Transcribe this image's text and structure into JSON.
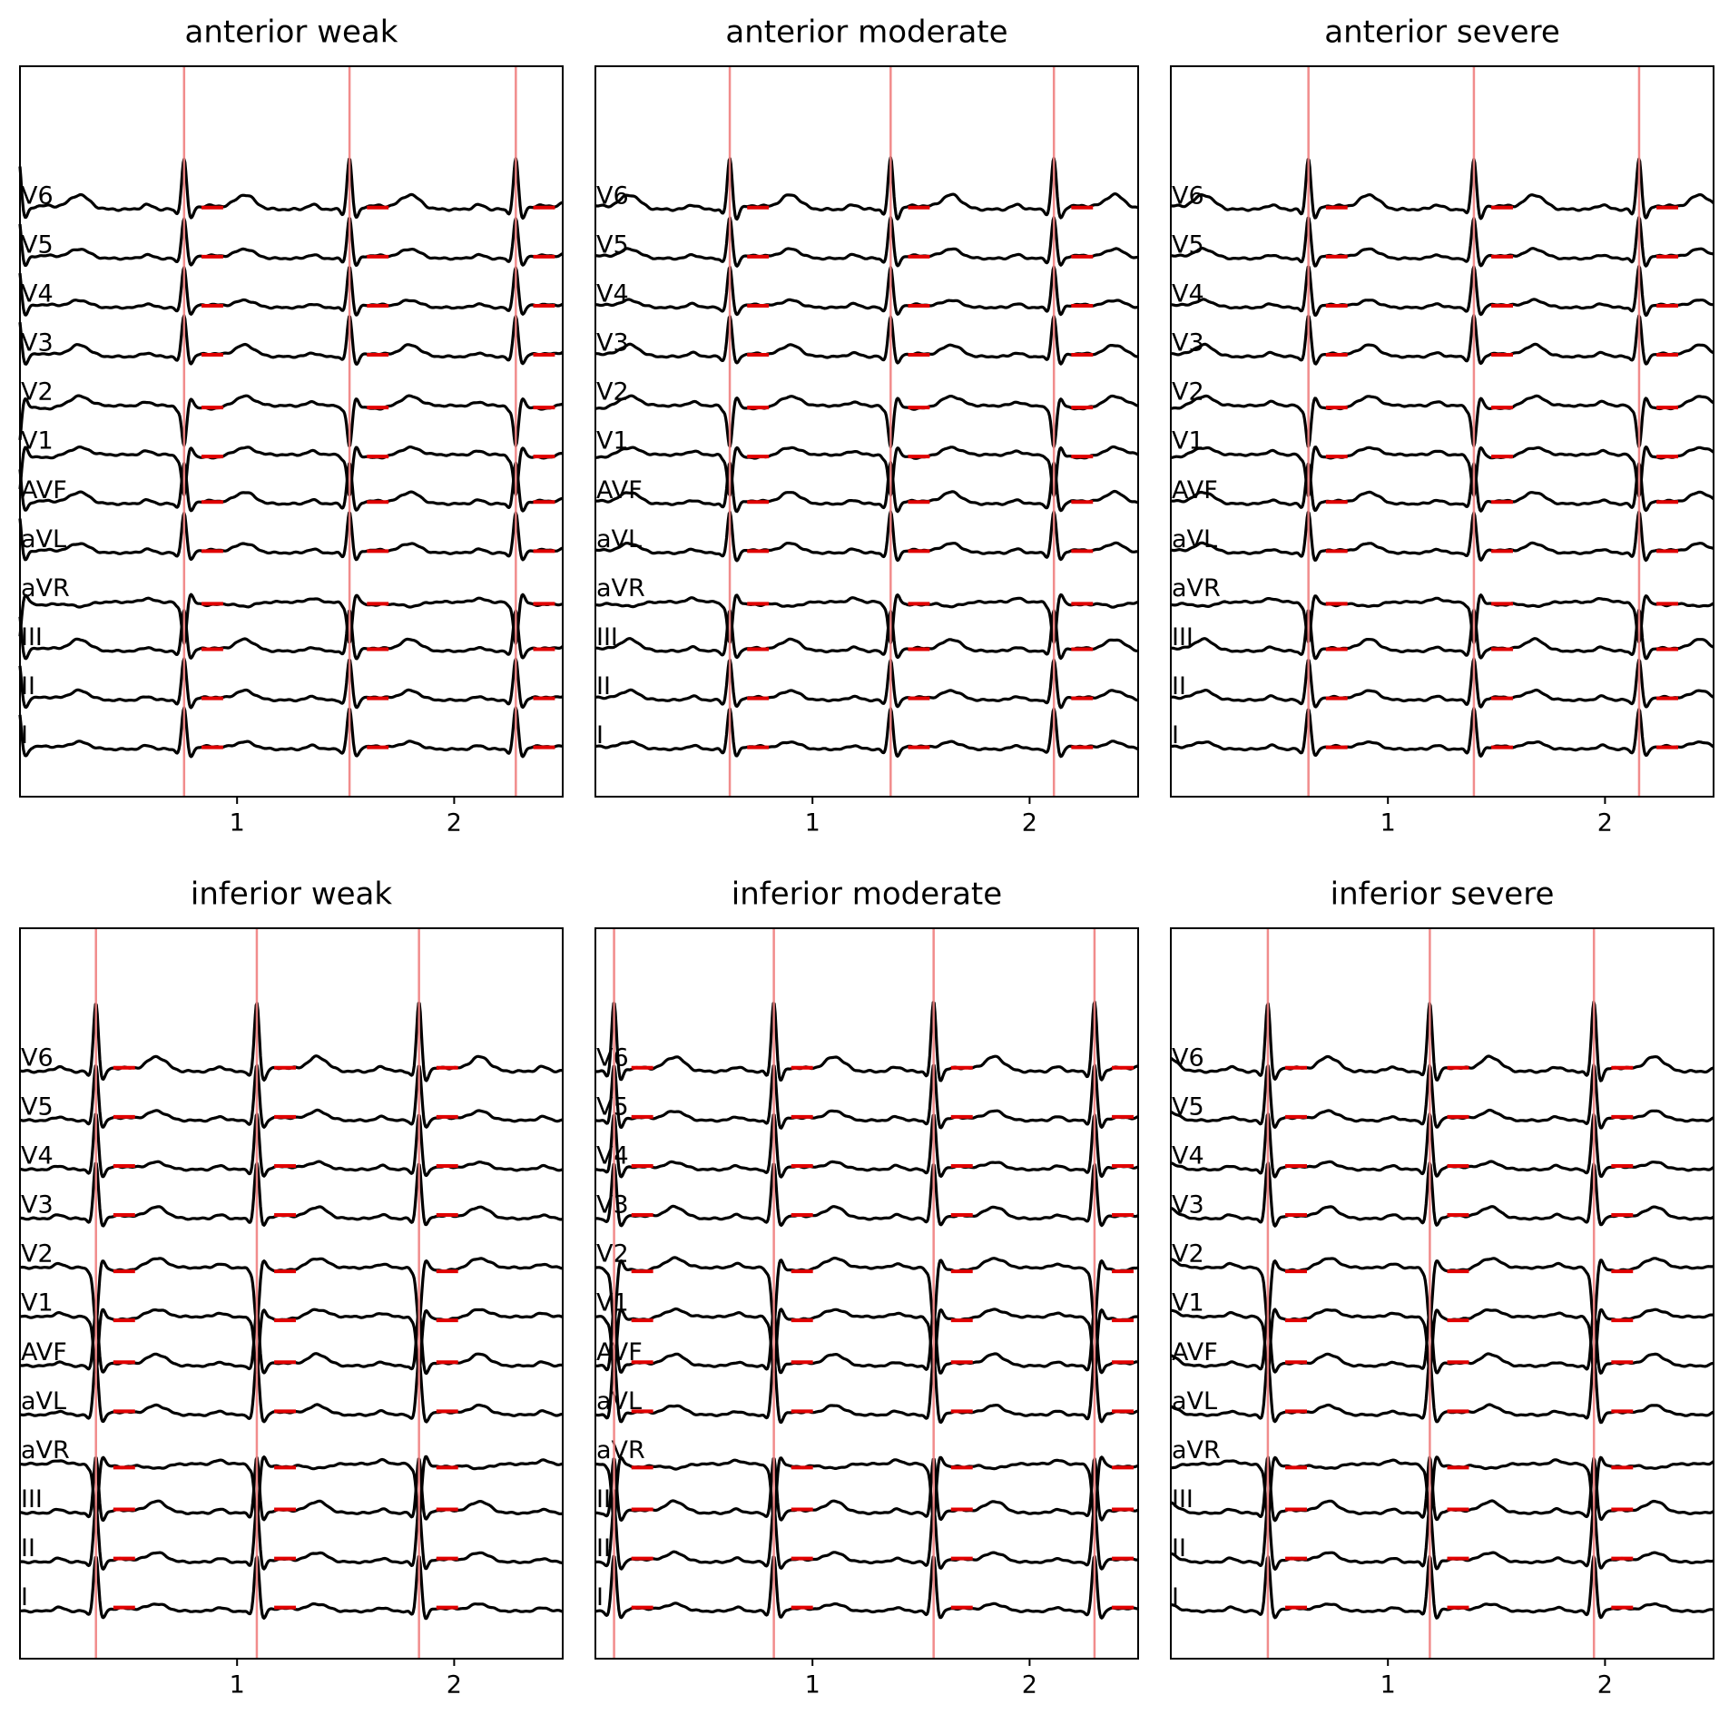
{
  "chart_data": [
    {
      "type": "ecg",
      "title": "anterior weak",
      "xlim": [
        0,
        2.5
      ],
      "xticks": [
        1,
        2
      ],
      "leads": [
        "I",
        "II",
        "III",
        "aVR",
        "aVL",
        "AVF",
        "V1",
        "V2",
        "V3",
        "V4",
        "V5",
        "V6"
      ],
      "r_peaks": [
        0.756,
        1.518,
        2.284
      ],
      "color": "#000000",
      "marker_color": "#f08080"
    },
    {
      "type": "ecg",
      "title": "anterior moderate",
      "xlim": [
        0,
        2.5
      ],
      "xticks": [
        1,
        2
      ],
      "leads": [
        "I",
        "II",
        "III",
        "aVR",
        "aVL",
        "AVF",
        "V1",
        "V2",
        "V3",
        "V4",
        "V5",
        "V6"
      ],
      "r_peaks": [
        0.619,
        1.36,
        2.112
      ],
      "color": "#000000",
      "marker_color": "#f08080"
    },
    {
      "type": "ecg",
      "title": "anterior severe",
      "xlim": [
        0,
        2.5
      ],
      "xticks": [
        1,
        2
      ],
      "leads": [
        "I",
        "II",
        "III",
        "aVR",
        "aVL",
        "AVF",
        "V1",
        "V2",
        "V3",
        "V4",
        "V5",
        "V6"
      ],
      "r_peaks": [
        0.634,
        1.396,
        2.157
      ],
      "color": "#000000",
      "marker_color": "#f08080"
    },
    {
      "type": "ecg",
      "title": "inferior weak",
      "xlim": [
        0,
        2.5
      ],
      "xticks": [
        1,
        2
      ],
      "leads": [
        "I",
        "II",
        "III",
        "aVR",
        "aVL",
        "AVF",
        "V1",
        "V2",
        "V3",
        "V4",
        "V5",
        "V6"
      ],
      "r_peaks": [
        0.35,
        1.091,
        1.838
      ],
      "color": "#000000",
      "marker_color": "#f08080"
    },
    {
      "type": "ecg",
      "title": "inferior moderate",
      "xlim": [
        0,
        2.5
      ],
      "xticks": [
        1,
        2
      ],
      "leads": [
        "I",
        "II",
        "III",
        "aVR",
        "aVL",
        "AVF",
        "V1",
        "V2",
        "V3",
        "V4",
        "V5",
        "V6"
      ],
      "r_peaks": [
        0.086,
        0.822,
        1.558,
        2.299
      ],
      "color": "#000000",
      "marker_color": "#f08080"
    },
    {
      "type": "ecg",
      "title": "inferior severe",
      "xlim": [
        0,
        2.5
      ],
      "xticks": [
        1,
        2
      ],
      "leads": [
        "I",
        "II",
        "III",
        "aVR",
        "aVL",
        "AVF",
        "V1",
        "V2",
        "V3",
        "V4",
        "V5",
        "V6"
      ],
      "r_peaks": [
        0.447,
        1.193,
        1.949
      ],
      "color": "#000000",
      "marker_color": "#f08080"
    }
  ]
}
